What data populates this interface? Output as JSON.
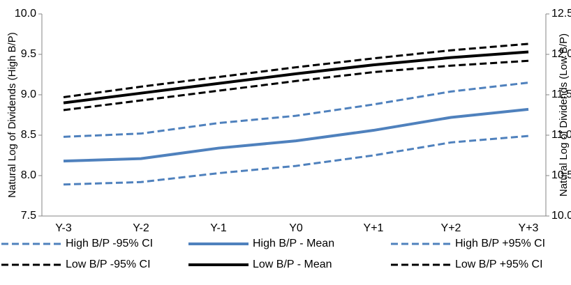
{
  "chart_data": {
    "type": "line",
    "categories": [
      "Y-3",
      "Y-2",
      "Y-1",
      "Y0",
      "Y+1",
      "Y+2",
      "Y+3"
    ],
    "y_label": "Natural Log of Dividends (High B/P)",
    "y2_label": "Natural Log of Dividends (Low B/P)",
    "ylim": [
      7.5,
      10.0
    ],
    "yticks": [
      7.5,
      {
        "value": 8.0,
        "label": "8.0"
      },
      8.5,
      {
        "value": 9.0,
        "label": "9.0"
      },
      9.5,
      {
        "value": 10.0,
        "label": "10.0"
      }
    ],
    "y2lim": [
      10.0,
      12.5
    ],
    "y2ticks": [
      {
        "value": 10.0,
        "label": "10.0"
      },
      10.5,
      {
        "value": 11.0,
        "label": "11.0"
      },
      11.5,
      {
        "value": 12.0,
        "label": "12.0"
      },
      12.5
    ],
    "series": [
      {
        "name": "High B/P -95% CI",
        "color": "#4f81bd",
        "dash": true,
        "values": [
          7.89,
          7.92,
          8.03,
          8.12,
          8.25,
          8.41,
          8.49
        ]
      },
      {
        "name": "High B/P - Mean",
        "color": "#4f81bd",
        "dash": false,
        "values": [
          8.18,
          8.21,
          8.34,
          8.43,
          8.56,
          8.72,
          8.82
        ]
      },
      {
        "name": "High B/P +95% CI",
        "color": "#4f81bd",
        "dash": true,
        "values": [
          8.48,
          8.52,
          8.65,
          8.74,
          8.88,
          9.04,
          9.15
        ]
      },
      {
        "name": "Low B/P -95% CI",
        "color": "#000000",
        "dash": true,
        "axis": "y2",
        "values": [
          11.31,
          11.43,
          11.55,
          11.67,
          11.78,
          11.86,
          11.92
        ]
      },
      {
        "name": "Low B/P - Mean",
        "color": "#000000",
        "dash": false,
        "axis": "y2",
        "values": [
          11.4,
          11.52,
          11.64,
          11.76,
          11.87,
          11.96,
          12.03
        ]
      },
      {
        "name": "Low B/P +95% CI",
        "color": "#000000",
        "dash": true,
        "axis": "y2",
        "values": [
          11.47,
          11.6,
          11.72,
          11.84,
          11.95,
          12.05,
          12.13
        ]
      }
    ]
  }
}
